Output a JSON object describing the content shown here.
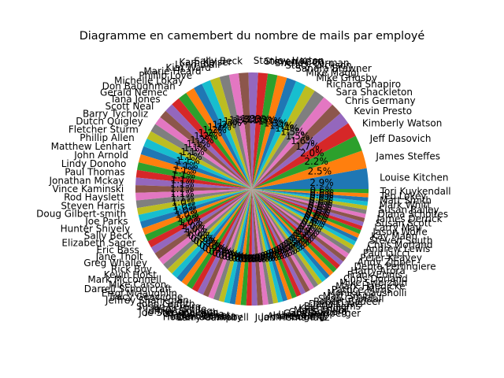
{
  "chart_data": {
    "type": "pie",
    "title": "Diagramme en camembert du nombre de mails par employé",
    "start_angle_deg": 0,
    "direction": "counterclockwise",
    "pct_format": "%.1f%%",
    "palette": [
      "#1f77b4",
      "#ff7f0e",
      "#2ca02c",
      "#d62728",
      "#9467bd",
      "#8c564b",
      "#e377c2",
      "#7f7f7f",
      "#bcbd22",
      "#17becf"
    ],
    "slices": [
      {
        "label": "Louise Kitchen",
        "value": 3.0
      },
      {
        "label": "James Steffes",
        "value": 2.6
      },
      {
        "label": "Jeff Dasovich",
        "value": 2.3
      },
      {
        "label": "Kimberly Watson",
        "value": 2.1
      },
      {
        "label": "Kevin Presto",
        "value": 1.8
      },
      {
        "label": "Chris Germany",
        "value": 1.7
      },
      {
        "label": "Sara Shackleton",
        "value": 1.6
      },
      {
        "label": "Richard Shapiro",
        "value": 1.6
      },
      {
        "label": "Mike Grigsby",
        "value": 1.5
      },
      {
        "label": "Mike Maggi",
        "value": 1.5
      },
      {
        "label": "Sandra Brawner",
        "value": 1.4
      },
      {
        "label": "Stacy Dickson",
        "value": 1.4
      },
      {
        "label": "Shelley Corman",
        "value": 1.4
      },
      {
        "label": "Steven Kean",
        "value": 1.4
      },
      {
        "label": "Stanley Horton",
        "value": 1.4
      },
      {
        "label": "Sally Beck",
        "value": 1.4
      },
      {
        "label": "Kam Keiser",
        "value": 1.4
      },
      {
        "label": "Lynn Blair",
        "value": 1.4
      },
      {
        "label": "Kim Ward",
        "value": 1.4
      },
      {
        "label": "Marie Heard",
        "value": 1.3
      },
      {
        "label": "Phillip Love",
        "value": 1.3
      },
      {
        "label": "Michelle Lokay",
        "value": 1.3
      },
      {
        "label": "Don Baughman",
        "value": 1.3
      },
      {
        "label": "Gerald Nemec",
        "value": 1.3
      },
      {
        "label": "Tana Jones",
        "value": 1.3
      },
      {
        "label": "Scott Neal",
        "value": 1.2
      },
      {
        "label": "Barry Tycholiz",
        "value": 1.2
      },
      {
        "label": "Dutch Quigley",
        "value": 1.2
      },
      {
        "label": "Fletcher Sturm",
        "value": 1.2
      },
      {
        "label": "Phillip Allen",
        "value": 1.2
      },
      {
        "label": "Matthew Lenhart",
        "value": 1.2
      },
      {
        "label": "John Arnold",
        "value": 1.2
      },
      {
        "label": "Lindy Donoho",
        "value": 1.1
      },
      {
        "label": "Paul Thomas",
        "value": 1.1
      },
      {
        "label": "Jonathan Mckay",
        "value": 1.1
      },
      {
        "label": "Vince Kaminski",
        "value": 1.1
      },
      {
        "label": "Rod Hayslett",
        "value": 1.1
      },
      {
        "label": "Steven Harris",
        "value": 1.1
      },
      {
        "label": "Doug Gilbert-smith",
        "value": 1.0
      },
      {
        "label": "Joe Parks",
        "value": 1.0
      },
      {
        "label": "Hunter Shively",
        "value": 1.0
      },
      {
        "label": "Sally Beck",
        "value": 1.0
      },
      {
        "label": "Elizabeth Sager",
        "value": 1.0
      },
      {
        "label": "Eric Bass",
        "value": 1.0
      },
      {
        "label": "Jane Tholt",
        "value": 1.0
      },
      {
        "label": "Greg Whalley",
        "value": 1.0
      },
      {
        "label": "Rick Buy",
        "value": 1.0
      },
      {
        "label": "Kevin Holst",
        "value": 0.9
      },
      {
        "label": "Mark Mcconnell",
        "value": 0.9
      },
      {
        "label": "Mike Carson",
        "value": 0.9
      },
      {
        "label": "Darrell Schoolcraft",
        "value": 0.9
      },
      {
        "label": "Errol Mclaughlin",
        "value": 0.9
      },
      {
        "label": "Tracy Geaccone",
        "value": 0.9
      },
      {
        "label": "Jeffrey Shankman",
        "value": 0.9
      },
      {
        "label": "John Griffith",
        "value": 0.9
      },
      {
        "label": "Susan Pereira",
        "value": 0.8
      },
      {
        "label": "Jason Wolfe",
        "value": 0.8
      },
      {
        "label": "Jeffrey Skilling",
        "value": 0.8
      },
      {
        "label": "Joe Stepenovitch",
        "value": 0.8
      },
      {
        "label": "Martin Cuilla",
        "value": 0.8
      },
      {
        "label": "Joe Quenet",
        "value": 0.8
      },
      {
        "label": "Robert Benson",
        "value": 0.8
      },
      {
        "label": "Holden Salisbury",
        "value": 0.8
      },
      {
        "label": "Larry Campbell",
        "value": 0.8
      },
      {
        "label": "Juan Hernandez",
        "value": 0.8
      },
      {
        "label": "John Hodge",
        "value": 0.8
      },
      {
        "label": "Andrea Ring",
        "value": 0.8
      },
      {
        "label": "John Forney",
        "value": 0.7
      },
      {
        "label": "Lisa Gang",
        "value": 0.7
      },
      {
        "label": "Cara Semperger",
        "value": 0.7
      },
      {
        "label": "Geir Solberg",
        "value": 0.7
      },
      {
        "label": "Mark Taylor",
        "value": 0.7
      },
      {
        "label": "Keith Holst",
        "value": 0.7
      },
      {
        "label": "Bill Williams",
        "value": 0.7
      },
      {
        "label": "Dana Davis",
        "value": 0.7
      },
      {
        "label": "Robert Badeer",
        "value": 0.7
      },
      {
        "label": "Sean Crandall",
        "value": 0.7
      },
      {
        "label": "Matt Smith",
        "value": 0.7
      },
      {
        "label": "Monika Causholli",
        "value": 0.7
      },
      {
        "label": "Patrice Mims",
        "value": 0.7
      },
      {
        "label": "Mark Haedicke",
        "value": 0.7
      },
      {
        "label": "Mike Swerzbin",
        "value": 0.7
      },
      {
        "label": "Chris Dorland",
        "value": 0.7
      },
      {
        "label": "Frank Ermis",
        "value": 0.7
      },
      {
        "label": "Harry Arora",
        "value": 0.7
      },
      {
        "label": "Debra Perlingiere",
        "value": 0.7
      },
      {
        "label": "Andy Zipper",
        "value": 0.7
      },
      {
        "label": "Peter Keavey",
        "value": 0.7
      },
      {
        "label": "Paul Lucci",
        "value": 0.7
      },
      {
        "label": "Andrew Lewis",
        "value": 0.6
      },
      {
        "label": "Chris Morland",
        "value": 0.6
      },
      {
        "label": "Steven South",
        "value": 0.6
      },
      {
        "label": "Kay Mann",
        "value": 0.6
      },
      {
        "label": "Jason Wolfe",
        "value": 0.6
      },
      {
        "label": "Larry May",
        "value": 0.6
      },
      {
        "label": "Susan Scott",
        "value": 0.6
      },
      {
        "label": "James Derrick",
        "value": 0.6
      },
      {
        "label": "Diana Scholtes",
        "value": 0.6
      },
      {
        "label": "Susan Bailey",
        "value": 0.6
      },
      {
        "label": "Mark Whitt",
        "value": 0.6
      },
      {
        "label": "Matt Smith",
        "value": 0.6
      },
      {
        "label": "Teb Lokey",
        "value": 0.6
      },
      {
        "label": "Tori Kuykendall",
        "value": 0.6
      }
    ]
  }
}
